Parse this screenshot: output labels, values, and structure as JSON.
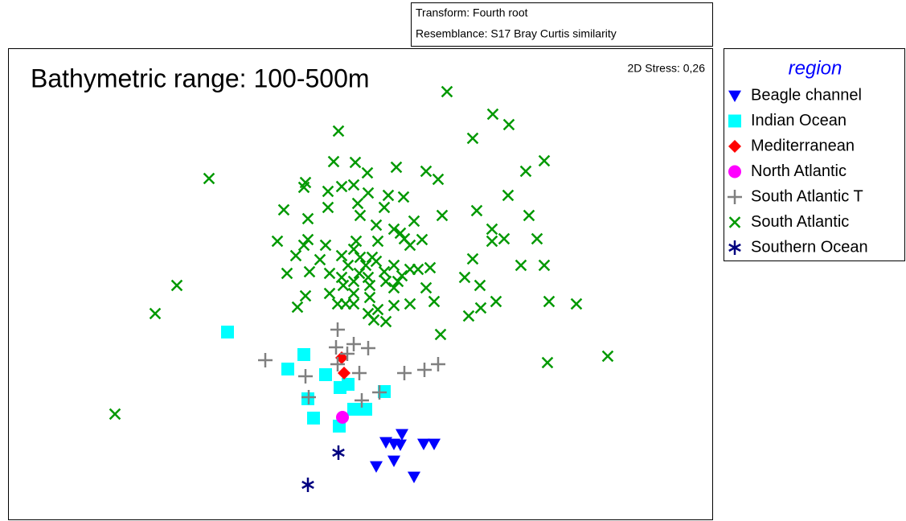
{
  "chart_data": {
    "type": "scatter",
    "title": "Bathymetric range: 100-500m",
    "transform": "Transform: Fourth root",
    "resemblance": "Resemblance: S17 Bray Curtis similarity",
    "stress": "2D Stress: 0,26",
    "legend_title": "region",
    "series": [
      {
        "name": "Beagle channel",
        "color": "#0000ff",
        "marker": "triangle-down",
        "x": [
          0.3,
          0.4,
          0.5,
          0.48,
          0.77,
          0.9,
          0.18,
          0.4,
          0.65
        ],
        "y": [
          -2.0,
          -2.02,
          -1.9,
          -2.03,
          -2.02,
          -2.02,
          -2.3,
          -2.23,
          -2.43
        ]
      },
      {
        "name": "Indian Ocean",
        "color": "#00ffff",
        "marker": "square",
        "x": [
          -1.67,
          -0.72,
          -0.92,
          -0.45,
          -0.27,
          -0.17,
          -0.67,
          0.28,
          -0.1,
          0.05,
          -0.6,
          -0.28
        ],
        "y": [
          -0.63,
          -0.91,
          -1.09,
          -1.16,
          -1.32,
          -1.28,
          -1.46,
          -1.37,
          -1.59,
          -1.59,
          -1.7,
          -1.8
        ]
      },
      {
        "name": "Mediterranean",
        "color": "#ff0000",
        "marker": "diamond",
        "x": [
          -0.25,
          -0.22
        ],
        "y": [
          -0.95,
          -1.14
        ]
      },
      {
        "name": "North Atlantic",
        "color": "#ff00ff",
        "marker": "circle",
        "x": [
          -0.24
        ],
        "y": [
          -1.69
        ]
      },
      {
        "name": "South Atlantic T",
        "color": "#808080",
        "marker": "plus",
        "x": [
          -1.2,
          -0.7,
          -0.3,
          -0.32,
          -0.1,
          0.08,
          -0.18,
          -0.3,
          -0.03,
          0.53,
          0.78,
          0.95,
          0.22,
          0.0,
          -0.66
        ],
        "y": [
          -0.98,
          -1.18,
          -0.6,
          -0.82,
          -0.78,
          -0.83,
          -0.9,
          -1.03,
          -1.14,
          -1.14,
          -1.1,
          -1.03,
          -1.38,
          -1.48,
          -1.44
        ]
      },
      {
        "name": "South Atlantic",
        "color": "#009900",
        "marker": "x",
        "x": [
          1.06,
          1.63,
          1.83,
          -0.29,
          1.38,
          -1.9,
          -0.7,
          -0.72,
          -0.35,
          -0.08,
          0.07,
          0.43,
          0.8,
          0.95,
          2.04,
          2.27,
          -0.42,
          -0.25,
          -0.1,
          0.08,
          0.33,
          0.52,
          1.82,
          -0.97,
          -0.67,
          -0.42,
          -0.05,
          0.28,
          -0.02,
          0.65,
          1.0,
          1.43,
          2.08,
          0.18,
          0.4,
          0.48,
          0.53,
          0.6,
          0.75,
          -1.05,
          -0.67,
          -0.72,
          -0.45,
          -0.1,
          -0.02,
          0.2,
          -0.07,
          1.62,
          1.62,
          1.77,
          2.18,
          -0.82,
          -0.52,
          -0.25,
          -0.17,
          0.05,
          0.13,
          0.18,
          0.28,
          0.4,
          0.6,
          0.7,
          0.85,
          -0.93,
          -0.65,
          -0.4,
          -0.25,
          -0.1,
          -0.03,
          0.08,
          0.3,
          0.45,
          0.5,
          1.38,
          1.98,
          2.27,
          -2.3,
          -0.4,
          -0.23,
          -0.1,
          0.1,
          0.4,
          0.8,
          1.28,
          1.47,
          -0.7,
          -0.3,
          -0.1,
          0.1,
          0.2,
          0.4,
          0.6,
          0.9,
          1.67,
          2.33,
          2.67,
          -0.8,
          -0.2,
          0.08,
          0.3,
          0.15,
          1.33,
          1.48,
          -2.57,
          0.98,
          2.31,
          3.06,
          -3.07
        ],
        "y": [
          2.36,
          2.08,
          1.95,
          1.87,
          1.78,
          1.28,
          1.23,
          1.17,
          1.49,
          1.48,
          1.35,
          1.42,
          1.37,
          1.27,
          1.37,
          1.5,
          1.12,
          1.18,
          1.2,
          1.1,
          1.07,
          1.05,
          1.07,
          0.89,
          0.78,
          0.92,
          0.97,
          0.92,
          0.82,
          0.75,
          0.82,
          0.88,
          0.82,
          0.7,
          0.65,
          0.6,
          0.53,
          0.45,
          0.52,
          0.5,
          0.52,
          0.45,
          0.45,
          0.4,
          0.3,
          0.5,
          0.5,
          0.65,
          0.5,
          0.53,
          0.53,
          0.32,
          0.27,
          0.32,
          0.2,
          0.2,
          0.3,
          0.25,
          0.12,
          0.2,
          0.15,
          0.15,
          0.17,
          0.1,
          0.12,
          0.1,
          0.05,
          0.0,
          0.1,
          0.05,
          0.0,
          0.0,
          0.07,
          0.28,
          0.2,
          0.2,
          -0.05,
          -0.15,
          -0.05,
          -0.15,
          -0.05,
          -0.08,
          -0.08,
          0.05,
          -0.05,
          -0.18,
          -0.28,
          -0.28,
          -0.2,
          -0.35,
          -0.3,
          -0.28,
          -0.25,
          -0.25,
          -0.25,
          -0.28,
          -0.32,
          -0.28,
          -0.4,
          -0.5,
          -0.48,
          -0.43,
          -0.33,
          -0.4,
          -0.66,
          -1.01,
          -0.93,
          -1.65
        ]
      },
      {
        "name": "Southern Ocean",
        "color": "#000080",
        "marker": "asterisk",
        "x": [
          -0.29,
          -0.67
        ],
        "y": [
          -2.13,
          -2.53
        ]
      }
    ]
  }
}
